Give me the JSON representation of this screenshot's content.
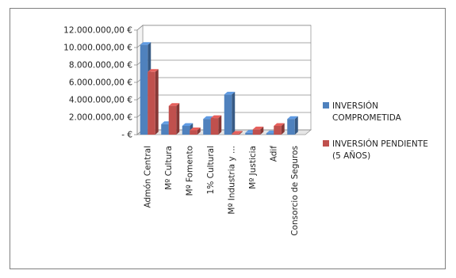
{
  "chart_data": {
    "type": "bar",
    "title": "",
    "xlabel": "",
    "ylabel": "",
    "ylim": [
      0,
      12000000
    ],
    "y_ticks": [
      {
        "value": 0,
        "label": "-   €"
      },
      {
        "value": 2000000,
        "label": "2.000.000,00 €"
      },
      {
        "value": 4000000,
        "label": "4.000.000,00 €"
      },
      {
        "value": 6000000,
        "label": "6.000.000,00 €"
      },
      {
        "value": 8000000,
        "label": "8.000.000,00 €"
      },
      {
        "value": 10000000,
        "label": "10.000.000,00 €"
      },
      {
        "value": 12000000,
        "label": "12.000.000,00 €"
      }
    ],
    "categories": [
      "Admón Central",
      "Mº Cultura",
      "Mº Fomento",
      "1% Cultural",
      "Mº Industria y ...",
      "Mº Justicia",
      "Adif",
      "Consorcio de Seguros"
    ],
    "series": [
      {
        "name": "INVERSIÓN COMPROMETIDA",
        "legend_lines": [
          "INVERSIÓN",
          "COMPROMETIDA"
        ],
        "color": "#4F81BD",
        "values": [
          10300000,
          1200000,
          1000000,
          1800000,
          4600000,
          200000,
          150000,
          1800000
        ]
      },
      {
        "name": "INVERSIÓN PENDIENTE (5 AÑOS)",
        "legend_lines": [
          "INVERSIÓN PENDIENTE",
          "(5 AÑOS)"
        ],
        "color": "#C0504D",
        "values": [
          7200000,
          3300000,
          500000,
          1900000,
          100000,
          600000,
          1000000,
          0
        ]
      }
    ],
    "grid": true,
    "legend_position": "right",
    "style": "3d-clustered-column"
  }
}
